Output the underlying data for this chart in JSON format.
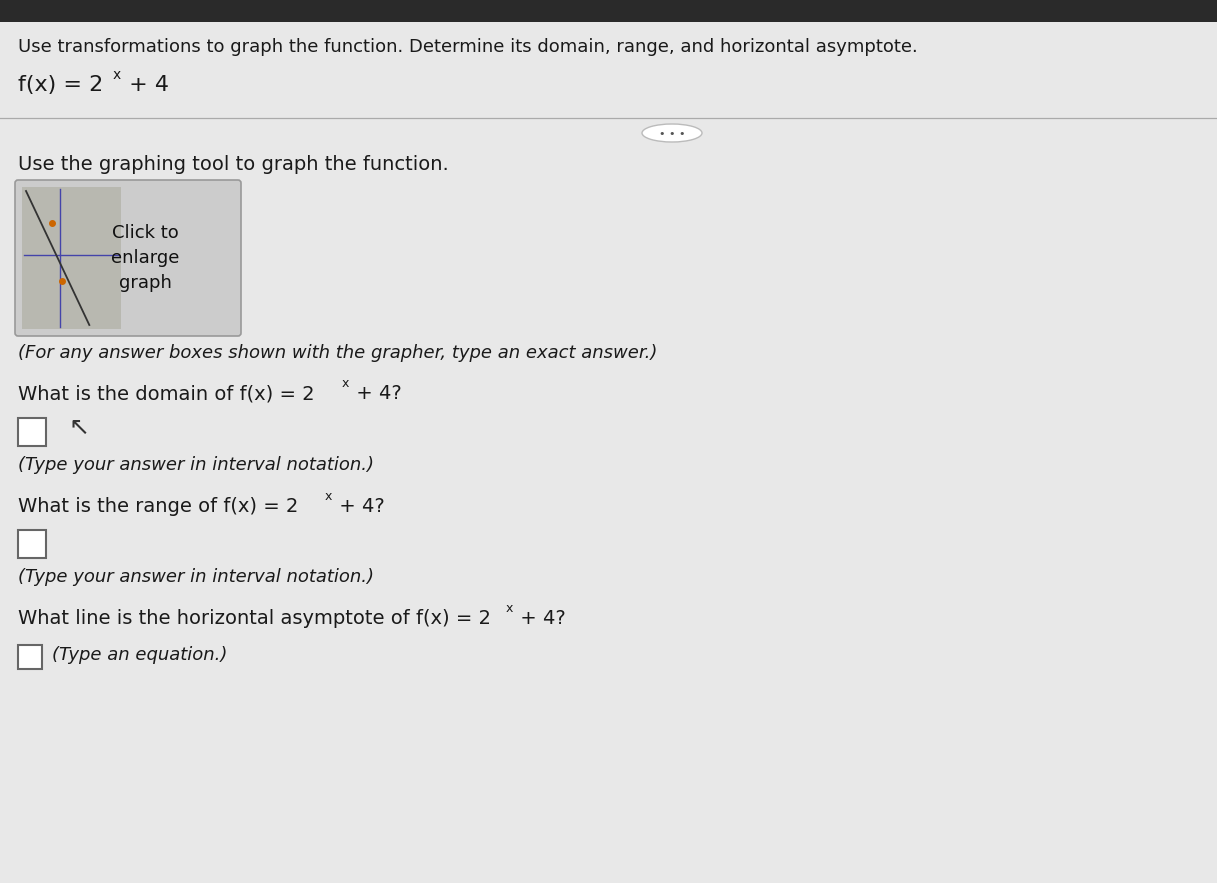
{
  "bg_color": "#d8d8d8",
  "content_bg": "#e8e8e8",
  "white": "#ffffff",
  "text_color": "#1a1a1a",
  "dark_bar_color": "#2a2a2a",
  "header_text": "Use transformations to graph the function. Determine its domain, range, and horizontal asymptote.",
  "func_base": "f(x) = 2",
  "func_sup": "x",
  "func_tail": " + 4",
  "divider_color": "#aaaaaa",
  "dots_text": "• • •",
  "tool_text": "Use the graphing tool to graph the function.",
  "graph_box_text": "Click to\nenlarge\ngraph",
  "graph_caption": "(For any answer boxes shown with the grapher, type an exact answer.)",
  "q1_base": "What is the domain of f(x) = 2",
  "q1_sup": "x",
  "q1_tail": " + 4?",
  "q1_hint": "(Type your answer in interval notation.)",
  "q2_base": "What is the range of f(x) = 2",
  "q2_sup": "x",
  "q2_tail": " + 4?",
  "q2_hint": "(Type your answer in interval notation.)",
  "q3_base": "What line is the horizontal asymptote of f(x) = 2",
  "q3_sup": "x",
  "q3_tail": " + 4?",
  "q3_hint": "(Type an equation.)",
  "fs_header": 13,
  "fs_func": 16,
  "fs_body": 14,
  "fs_hint": 13,
  "fs_sup": 9,
  "fs_graph_text": 13,
  "fs_dots": 8
}
